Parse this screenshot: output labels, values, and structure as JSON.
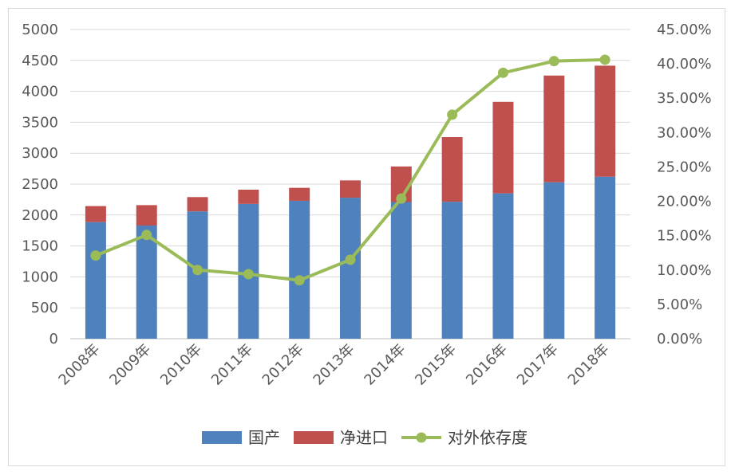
{
  "chart_data": {
    "type": "bar",
    "categories": [
      "2008年",
      "2009年",
      "2010年",
      "2011年",
      "2012年",
      "2013年",
      "2014年",
      "2015年",
      "2016年",
      "2017年",
      "2018年"
    ],
    "series": [
      {
        "name": "国产",
        "kind": "stacked-bar",
        "color": "#4f81bd",
        "values": [
          1885,
          1830,
          2060,
          2180,
          2230,
          2280,
          2210,
          2215,
          2350,
          2530,
          2620
        ]
      },
      {
        "name": "净进口",
        "kind": "stacked-bar",
        "color": "#c0504d",
        "values": [
          260,
          330,
          230,
          230,
          210,
          280,
          575,
          1045,
          1480,
          1725,
          1795
        ]
      },
      {
        "name": "对外依存度",
        "kind": "line",
        "axis": "right",
        "color": "#9bbb59",
        "values": [
          0.121,
          0.151,
          0.1,
          0.094,
          0.085,
          0.115,
          0.204,
          0.326,
          0.387,
          0.404,
          0.406
        ]
      }
    ],
    "y_left": {
      "min": 0,
      "max": 5000,
      "ticks": [
        "0",
        "500",
        "1000",
        "1500",
        "2000",
        "2500",
        "3000",
        "3500",
        "4000",
        "4500",
        "5000"
      ]
    },
    "y_right": {
      "min": 0,
      "max": 0.45,
      "ticks": [
        "0.00%",
        "5.00%",
        "10.00%",
        "15.00%",
        "20.00%",
        "25.00%",
        "30.00%",
        "35.00%",
        "40.00%",
        "45.00%"
      ]
    },
    "grid": true,
    "legend": "bottom"
  }
}
